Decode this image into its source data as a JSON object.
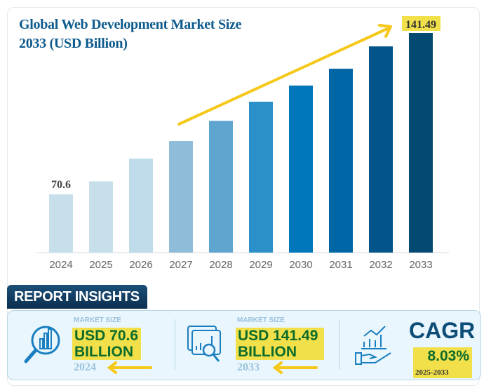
{
  "chart_data": {
    "type": "bar",
    "title": "Global Web Development Market Size 2033 (USD Billion)",
    "title_line1": "Global Web Development Market Size",
    "title_line2": "2033 (USD Billion)",
    "categories": [
      "2024",
      "2025",
      "2026",
      "2027",
      "2028",
      "2029",
      "2030",
      "2031",
      "2032",
      "2033"
    ],
    "values": [
      70.6,
      76.3,
      86.3,
      94.0,
      102.9,
      111.3,
      118.4,
      125.8,
      135.6,
      141.49
    ],
    "data_labels": {
      "first": "70.6",
      "last": "141.49"
    },
    "colors": [
      "#c6dfeb",
      "#c6dfeb",
      "#c0dbea",
      "#8fbdd9",
      "#5ea5d0",
      "#2b8fca",
      "#0077bb",
      "#0066a6",
      "#02558a",
      "#024a72"
    ],
    "ylim": [
      45,
      145
    ],
    "grid": false,
    "trend_arrow_color": "#f5c81a"
  },
  "insights": {
    "header": "REPORT INSIGHTS",
    "market_2024": {
      "label": "MARKET SIZE",
      "line1": "USD 70.6",
      "line2": "BILLION",
      "year": "2024",
      "icon": "magnifier-chart-icon"
    },
    "market_2033": {
      "label": "MARKET SIZE",
      "line1": "USD 141.49",
      "line2": "BILLION",
      "year": "2033",
      "icon": "browser-analytics-icon"
    },
    "cagr": {
      "label": "CAGR",
      "value": "8.03%",
      "period": "2025-2033",
      "icon": "hand-growth-chart-icon"
    },
    "highlight_color": "#f2e04a",
    "arrow_color": "#f5c81a"
  }
}
